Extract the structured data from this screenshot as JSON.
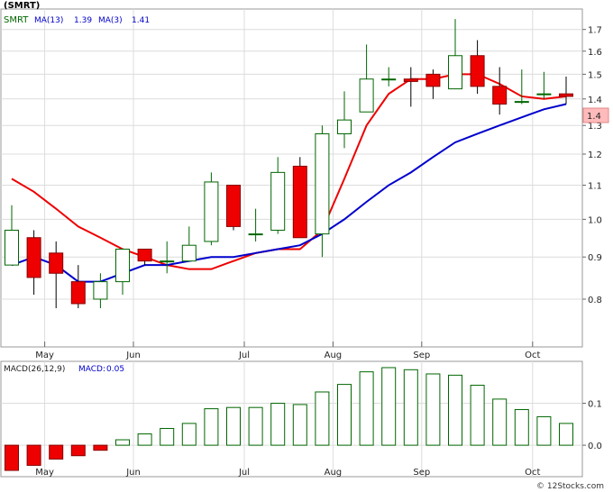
{
  "chart_data": [
    {
      "type": "candlestick",
      "title": "(SMRT)",
      "legend": [
        {
          "label": "SMRT",
          "color": "#006600"
        },
        {
          "label": "MA(13)",
          "value": "1.39",
          "color": "#0000cc"
        },
        {
          "label": "MA(3)",
          "value": "1.41",
          "color": "#0000cc"
        }
      ],
      "y_ticks": [
        "1.7",
        "1.6",
        "1.5",
        "1.4",
        "1.3",
        "1.2",
        "1.1",
        "1.0",
        "0.9",
        "0.8"
      ],
      "y_scale": "log",
      "ylim": [
        0.7,
        1.8
      ],
      "grid": true,
      "x_labels": [
        "May",
        "Jun",
        "Jul",
        "Aug",
        "Sep",
        "Oct"
      ],
      "last_price_label": "1.4",
      "up_color": "#006600",
      "down_color": "#ee0000",
      "candles": [
        {
          "o": 0.88,
          "h": 1.04,
          "l": 0.88,
          "c": 0.97
        },
        {
          "o": 0.95,
          "h": 0.97,
          "l": 0.81,
          "c": 0.85
        },
        {
          "o": 0.91,
          "h": 0.94,
          "l": 0.78,
          "c": 0.86
        },
        {
          "o": 0.84,
          "h": 0.88,
          "l": 0.78,
          "c": 0.79
        },
        {
          "o": 0.8,
          "h": 0.86,
          "l": 0.78,
          "c": 0.84
        },
        {
          "o": 0.84,
          "h": 0.92,
          "l": 0.81,
          "c": 0.92
        },
        {
          "o": 0.92,
          "h": 0.92,
          "l": 0.88,
          "c": 0.89
        },
        {
          "o": 0.89,
          "h": 0.94,
          "l": 0.86,
          "c": 0.89
        },
        {
          "o": 0.89,
          "h": 0.98,
          "l": 0.89,
          "c": 0.93
        },
        {
          "o": 0.94,
          "h": 1.14,
          "l": 0.93,
          "c": 1.11
        },
        {
          "o": 1.1,
          "h": 1.1,
          "l": 0.97,
          "c": 0.98
        },
        {
          "o": 0.96,
          "h": 1.03,
          "l": 0.94,
          "c": 0.96
        },
        {
          "o": 0.97,
          "h": 1.19,
          "l": 0.96,
          "c": 1.14
        },
        {
          "o": 1.16,
          "h": 1.19,
          "l": 0.95,
          "c": 0.95
        },
        {
          "o": 0.96,
          "h": 1.3,
          "l": 0.9,
          "c": 1.27
        },
        {
          "o": 1.27,
          "h": 1.43,
          "l": 1.22,
          "c": 1.32
        },
        {
          "o": 1.35,
          "h": 1.63,
          "l": 1.35,
          "c": 1.48
        },
        {
          "o": 1.48,
          "h": 1.53,
          "l": 1.45,
          "c": 1.48
        },
        {
          "o": 1.48,
          "h": 1.53,
          "l": 1.37,
          "c": 1.47
        },
        {
          "o": 1.5,
          "h": 1.52,
          "l": 1.4,
          "c": 1.45
        },
        {
          "o": 1.44,
          "h": 1.75,
          "l": 1.44,
          "c": 1.58
        },
        {
          "o": 1.58,
          "h": 1.65,
          "l": 1.42,
          "c": 1.45
        },
        {
          "o": 1.45,
          "h": 1.53,
          "l": 1.34,
          "c": 1.38
        },
        {
          "o": 1.39,
          "h": 1.52,
          "l": 1.38,
          "c": 1.39
        },
        {
          "o": 1.42,
          "h": 1.51,
          "l": 1.4,
          "c": 1.42
        },
        {
          "o": 1.42,
          "h": 1.49,
          "l": 1.38,
          "c": 1.41
        }
      ],
      "ma_slow": [
        0.88,
        0.9,
        0.88,
        0.84,
        0.84,
        0.86,
        0.88,
        0.88,
        0.89,
        0.9,
        0.9,
        0.91,
        0.92,
        0.93,
        0.96,
        1.0,
        1.05,
        1.1,
        1.14,
        1.19,
        1.24,
        1.27,
        1.3,
        1.33,
        1.36,
        1.38
      ],
      "ma_fast": [
        1.12,
        1.08,
        1.03,
        0.98,
        0.95,
        0.92,
        0.9,
        0.88,
        0.87,
        0.87,
        0.89,
        0.91,
        0.92,
        0.92,
        0.97,
        1.12,
        1.3,
        1.42,
        1.48,
        1.48,
        1.5,
        1.5,
        1.46,
        1.41,
        1.4,
        1.41
      ]
    },
    {
      "type": "bar",
      "title": "MACD(26,12,9)",
      "legend": [
        {
          "label": "MACD(26,12,9)",
          "color": "#000000"
        },
        {
          "label": "MACD:",
          "value": "0.05",
          "color": "#0000cc"
        }
      ],
      "y_ticks": [
        "0.1",
        "0.0"
      ],
      "ylim": [
        -0.075,
        0.2
      ],
      "x_labels": [
        "May",
        "Jun",
        "Jul",
        "Aug",
        "Sep",
        "Oct"
      ],
      "values": [
        -0.06,
        -0.048,
        -0.033,
        -0.025,
        -0.012,
        0.013,
        0.027,
        0.04,
        0.052,
        0.087,
        0.09,
        0.09,
        0.1,
        0.097,
        0.127,
        0.145,
        0.175,
        0.185,
        0.18,
        0.17,
        0.167,
        0.143,
        0.11,
        0.085,
        0.068,
        0.052
      ]
    }
  ],
  "watermark": "© 12Stocks.com"
}
